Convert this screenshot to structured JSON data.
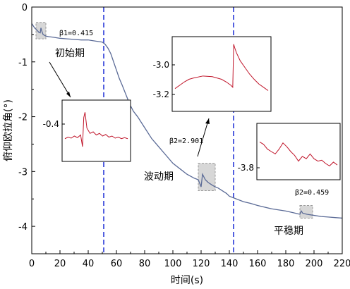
{
  "chart_data": {
    "type": "line",
    "xlabel": "时间(s)",
    "ylabel": "俯仰欧拉角(°)",
    "xlim": [
      0,
      220
    ],
    "ylim": [
      -4.5,
      0
    ],
    "x_ticks": [
      "0",
      "20",
      "40",
      "60",
      "80",
      "100",
      "120",
      "140",
      "160",
      "180",
      "200",
      "220"
    ],
    "y_ticks": [
      "0",
      "-1",
      "-2",
      "-3",
      "-4"
    ],
    "grid": false,
    "colors": {
      "main_series": "#5a6a96",
      "inset_series": "#c0152a",
      "divider": "#1a2bd6",
      "highlight_box": "#b0b0b0"
    },
    "series": [
      {
        "x": [
          0,
          2,
          4,
          5,
          6,
          6.5,
          7,
          8,
          10,
          12,
          15,
          20,
          25,
          30,
          35,
          40,
          45,
          50,
          52,
          54,
          56,
          58,
          60,
          62,
          64,
          66,
          68,
          70,
          72,
          75,
          80,
          85,
          90,
          95,
          100,
          105,
          110,
          115,
          118,
          120,
          121,
          122,
          123,
          125,
          128,
          130,
          132,
          135,
          138,
          140,
          145,
          150,
          155,
          160,
          170,
          180,
          185,
          190,
          191,
          192,
          195,
          200,
          205,
          210,
          215,
          220
        ],
        "values": [
          -0.3,
          -0.38,
          -0.43,
          -0.46,
          -0.47,
          -0.38,
          -0.43,
          -0.5,
          -0.53,
          -0.54,
          -0.55,
          -0.57,
          -0.58,
          -0.59,
          -0.6,
          -0.6,
          -0.62,
          -0.64,
          -0.68,
          -0.75,
          -0.85,
          -1.0,
          -1.15,
          -1.3,
          -1.42,
          -1.55,
          -1.68,
          -1.8,
          -1.9,
          -2.0,
          -2.2,
          -2.4,
          -2.55,
          -2.7,
          -2.85,
          -2.95,
          -3.05,
          -3.12,
          -3.15,
          -3.28,
          -3.05,
          -3.1,
          -3.15,
          -3.2,
          -3.25,
          -3.28,
          -3.3,
          -3.35,
          -3.4,
          -3.45,
          -3.5,
          -3.55,
          -3.58,
          -3.62,
          -3.68,
          -3.72,
          -3.75,
          -3.78,
          -3.72,
          -3.76,
          -3.78,
          -3.8,
          -3.82,
          -3.83,
          -3.84,
          -3.85
        ]
      }
    ],
    "dividers_x": [
      51,
      143
    ],
    "annotations": {
      "beta1": "β1=0.415",
      "beta2_wave": "β2=2.901",
      "beta2_stable": "β2=0.459",
      "stage1": "初始期",
      "stage2": "波动期",
      "stage3": "平稳期"
    },
    "insets": [
      {
        "tick_label": "-0.4",
        "x": [
          0,
          0.05,
          0.1,
          0.15,
          0.2,
          0.25,
          0.28,
          0.3,
          0.32,
          0.35,
          0.4,
          0.45,
          0.5,
          0.55,
          0.6,
          0.65,
          0.7,
          0.75,
          0.8,
          0.85,
          0.9,
          0.95,
          1.0
        ],
        "values": [
          0.35,
          0.38,
          0.36,
          0.4,
          0.37,
          0.42,
          0.2,
          0.75,
          0.85,
          0.55,
          0.45,
          0.48,
          0.42,
          0.45,
          0.4,
          0.43,
          0.38,
          0.4,
          0.36,
          0.38,
          0.35,
          0.37,
          0.35
        ]
      },
      {
        "tick_labels": [
          "-3.0",
          "-3.2"
        ],
        "x": [
          0,
          0.05,
          0.1,
          0.15,
          0.2,
          0.3,
          0.4,
          0.5,
          0.55,
          0.6,
          0.62,
          0.63,
          0.64,
          0.66,
          0.7,
          0.75,
          0.8,
          0.85,
          0.9,
          0.95,
          1.0
        ],
        "values": [
          0.28,
          0.33,
          0.38,
          0.42,
          0.44,
          0.47,
          0.46,
          0.42,
          0.38,
          0.33,
          0.3,
          0.95,
          0.9,
          0.82,
          0.7,
          0.6,
          0.5,
          0.42,
          0.35,
          0.3,
          0.25
        ]
      },
      {
        "tick_label": "-3.8",
        "x": [
          0,
          0.05,
          0.1,
          0.15,
          0.2,
          0.25,
          0.3,
          0.35,
          0.4,
          0.45,
          0.5,
          0.55,
          0.6,
          0.65,
          0.7,
          0.75,
          0.8,
          0.85,
          0.9,
          0.95,
          1.0
        ],
        "values": [
          0.7,
          0.65,
          0.55,
          0.5,
          0.45,
          0.55,
          0.68,
          0.6,
          0.5,
          0.42,
          0.3,
          0.4,
          0.35,
          0.45,
          0.35,
          0.3,
          0.32,
          0.25,
          0.2,
          0.28,
          0.22
        ]
      }
    ]
  }
}
